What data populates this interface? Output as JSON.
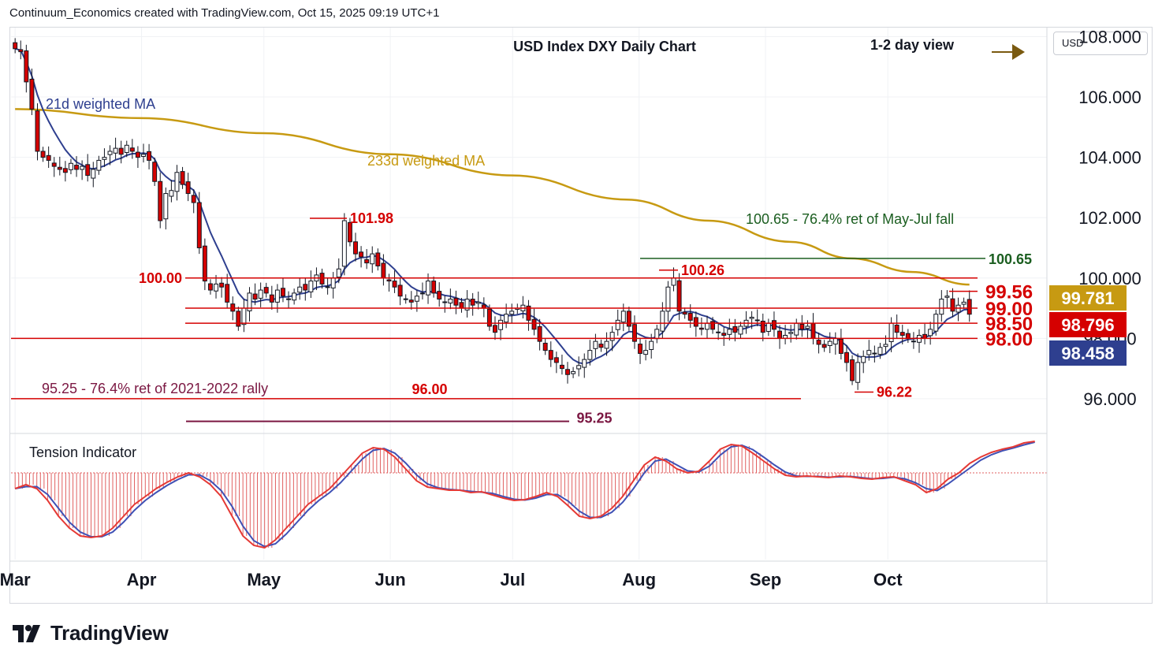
{
  "header": {
    "attribution": "Continuum_Economics created with TradingView.com, Oct 15, 2025 09:19 UTC+1"
  },
  "branding": {
    "logo_text": "TradingView"
  },
  "price_axis": {
    "currency": "USD"
  },
  "chart_data": [
    {
      "type": "candlestick",
      "title": "USD Index DXY Daily Chart",
      "subtitle": "1-2 day view",
      "view_arrow": "right-arrow-icon",
      "ylim": [
        94.9,
        108.3
      ],
      "y_ticks": [
        96,
        98,
        100,
        102,
        104,
        106,
        108
      ],
      "y_tick_labels": [
        "96.000",
        "98.000",
        "100.000",
        "102.000",
        "104.000",
        "106.000",
        "108.000"
      ],
      "x_labels": [
        {
          "label": "Mar",
          "day": 0
        },
        {
          "label": "Apr",
          "day": 31
        },
        {
          "label": "May",
          "day": 61
        },
        {
          "label": "Jun",
          "day": 92
        },
        {
          "label": "Jul",
          "day": 122
        },
        {
          "label": "Aug",
          "day": 153
        },
        {
          "label": "Sep",
          "day": 184
        },
        {
          "label": "Oct",
          "day": 214
        }
      ],
      "x_domain_days": [
        -1,
        253
      ],
      "closes": [
        107.6,
        107.5,
        106.5,
        105.6,
        104.2,
        104.0,
        103.9,
        103.7,
        103.6,
        103.5,
        103.8,
        103.6,
        103.7,
        103.4,
        103.6,
        103.9,
        104.0,
        104.2,
        104.3,
        104.1,
        104.4,
        104.2,
        104.0,
        104.1,
        103.9,
        103.2,
        101.9,
        102.8,
        102.9,
        103.5,
        103.1,
        102.8,
        102.5,
        101.0,
        99.9,
        99.6,
        99.8,
        99.7,
        99.2,
        98.9,
        98.4,
        99.0,
        99.5,
        99.3,
        99.6,
        99.5,
        99.2,
        99.6,
        99.4,
        99.3,
        99.5,
        99.7,
        99.6,
        99.9,
        100.1,
        99.8,
        99.7,
        100.0,
        100.3,
        101.9,
        101.2,
        100.8,
        100.7,
        100.5,
        100.8,
        100.4,
        100.0,
        99.9,
        99.7,
        99.4,
        99.3,
        99.2,
        99.4,
        99.5,
        99.9,
        99.5,
        99.3,
        99.2,
        99.3,
        99.1,
        99.0,
        99.3,
        99.1,
        99.2,
        99.0,
        98.4,
        98.2,
        98.6,
        98.8,
        98.9,
        99.0,
        99.1,
        98.6,
        98.3,
        97.9,
        97.6,
        97.3,
        97.2,
        97.0,
        96.8,
        96.9,
        97.1,
        97.3,
        97.6,
        97.9,
        97.7,
        97.9,
        98.2,
        98.6,
        98.9,
        98.4,
        97.9,
        97.5,
        97.6,
        97.9,
        98.3,
        98.9,
        99.7,
        100.0,
        98.9,
        98.8,
        98.6,
        98.4,
        98.3,
        98.5,
        98.3,
        98.2,
        98.1,
        98.3,
        98.2,
        98.4,
        98.6,
        98.7,
        98.6,
        98.2,
        98.5,
        98.3,
        98.0,
        98.1,
        98.2,
        98.5,
        98.3,
        98.4,
        98.0,
        97.8,
        97.7,
        97.9,
        98.0,
        97.5,
        97.2,
        96.6,
        97.2,
        97.4,
        97.6,
        97.5,
        97.7,
        97.8,
        98.5,
        98.2,
        98.1,
        98.0,
        97.9,
        98.1,
        98.0,
        98.3,
        98.8,
        99.3,
        99.4,
        98.9,
        99.1,
        99.2,
        98.8
      ],
      "key_levels": [
        {
          "label": "100.00",
          "value": 100.0,
          "color": "#d50000"
        },
        {
          "label": "99.00",
          "value": 99.0,
          "color": "#d50000"
        },
        {
          "label": "98.50",
          "value": 98.5,
          "color": "#d50000"
        },
        {
          "label": "98.00",
          "value": 98.0,
          "color": "#d50000"
        },
        {
          "label": "96.00",
          "value": 96.0,
          "color": "#d50000"
        },
        {
          "label": "95.25",
          "value": 95.25,
          "color": "#7b1742"
        },
        {
          "label": "100.65",
          "value": 100.65,
          "color": "#1b5e20"
        },
        {
          "label": "101.98",
          "value": 101.98,
          "color": "#d50000"
        },
        {
          "label": "100.26",
          "value": 100.26,
          "color": "#d50000"
        },
        {
          "label": "99.56",
          "value": 99.56,
          "color": "#d50000"
        },
        {
          "label": "96.22",
          "value": 96.22,
          "color": "#d50000"
        }
      ],
      "annotations": {
        "ma21": "21d weighted MA",
        "ma233": "233d weighted MA",
        "ret_may_jul": "100.65 - 76.4% ret of May-Jul fall",
        "ret_2021_2022": "95.25 - 76.4% ret of 2021-2022 rally"
      },
      "price_tags": [
        {
          "label": "99.781",
          "value": 99.781,
          "color": "#c79a12"
        },
        {
          "label": "98.796",
          "value": 98.796,
          "color": "#d50000"
        },
        {
          "label": "98.458",
          "value": 98.458,
          "color": "#2e3f8f"
        }
      ],
      "colors": {
        "up": "#1b6b2a",
        "down": "#d50000",
        "ma21": "#2e3f8f",
        "ma233": "#c79a12",
        "indicator_hist": "#e06060",
        "indicator_fast": "#e53935",
        "indicator_slow": "#3f51b5"
      },
      "indicator": {
        "name": "Tension Indicator",
        "ylim": [
          -1.1,
          0.45
        ],
        "values": [
          -0.2,
          -0.15,
          -0.2,
          -0.35,
          -0.55,
          -0.7,
          -0.8,
          -0.82,
          -0.8,
          -0.7,
          -0.55,
          -0.4,
          -0.3,
          -0.2,
          -0.12,
          -0.05,
          0.0,
          -0.05,
          -0.15,
          -0.3,
          -0.55,
          -0.8,
          -0.92,
          -0.95,
          -0.85,
          -0.7,
          -0.55,
          -0.4,
          -0.3,
          -0.2,
          -0.05,
          0.1,
          0.25,
          0.32,
          0.3,
          0.2,
          0.05,
          -0.1,
          -0.18,
          -0.2,
          -0.22,
          -0.22,
          -0.25,
          -0.24,
          -0.28,
          -0.32,
          -0.35,
          -0.34,
          -0.3,
          -0.25,
          -0.3,
          -0.42,
          -0.55,
          -0.58,
          -0.55,
          -0.45,
          -0.3,
          -0.1,
          0.1,
          0.2,
          0.15,
          0.05,
          0.0,
          0.02,
          0.15,
          0.3,
          0.36,
          0.34,
          0.25,
          0.15,
          0.05,
          -0.03,
          -0.05,
          -0.04,
          -0.05,
          -0.06,
          -0.04,
          -0.05,
          -0.07,
          -0.08,
          -0.06,
          -0.05,
          -0.1,
          -0.15,
          -0.25,
          -0.2,
          -0.08,
          0.0,
          0.12,
          0.2,
          0.26,
          0.3,
          0.33,
          0.38,
          0.4
        ],
        "start_day": 0,
        "step_days": 2.66
      },
      "ma233_values": [
        105.6,
        105.3,
        104.8,
        104.1,
        103.4,
        102.6,
        101.9,
        101.2,
        100.65,
        100.2,
        99.781
      ],
      "ma233_days": [
        0,
        31,
        61,
        92,
        122,
        150,
        170,
        190,
        205,
        220,
        234
      ]
    }
  ]
}
